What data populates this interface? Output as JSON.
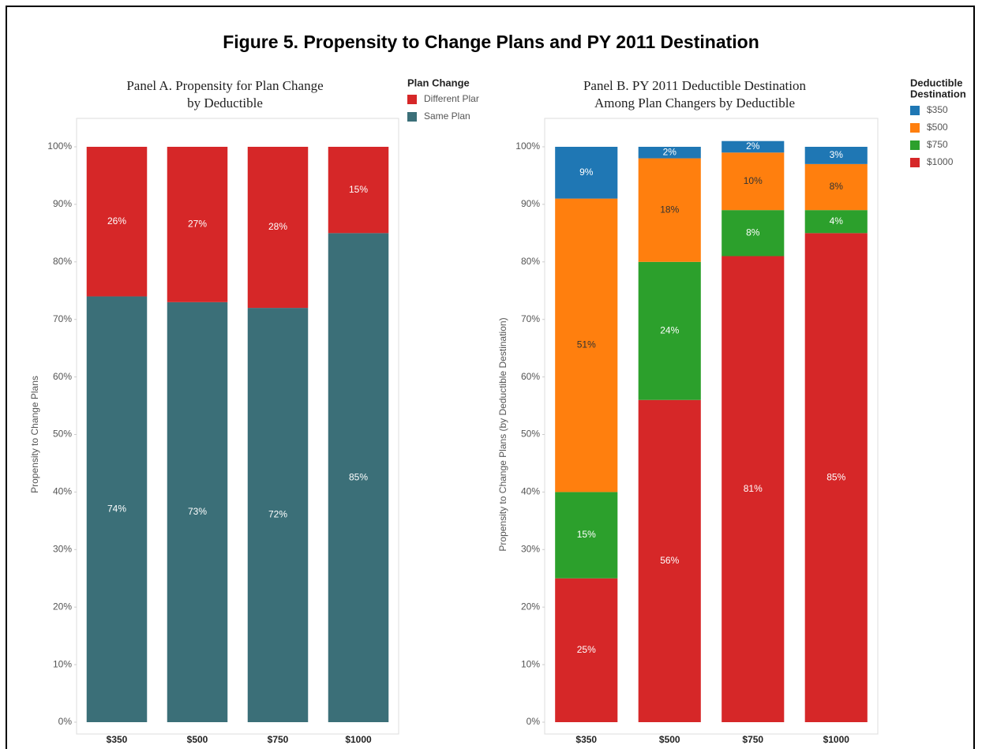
{
  "title": "Figure 5.  Propensity to Change Plans and PY 2011 Destination",
  "chart_data": [
    {
      "type": "stacked_bar",
      "title": [
        "Panel A. Propensity for Plan Change",
        "by Deductible"
      ],
      "ylabel": "Propensity to Change Plans",
      "legend_title": [
        "Plan Change"
      ],
      "categories": [
        "$350",
        "$500",
        "$750",
        "$1000"
      ],
      "series": [
        {
          "name": "Same Plan",
          "color": "#3b6f78",
          "values": [
            74,
            73,
            72,
            85
          ],
          "value_labels": [
            "74%",
            "73%",
            "72%",
            "85%"
          ]
        },
        {
          "name": "Different Plar",
          "color": "#d62728",
          "values": [
            26,
            27,
            28,
            15
          ],
          "value_labels": [
            "26%",
            "27%",
            "28%",
            "15%"
          ]
        }
      ],
      "ylim": [
        0,
        100
      ],
      "yticks": [
        {
          "value": 0,
          "label": "0%"
        },
        {
          "value": 10,
          "label": "10%"
        },
        {
          "value": 20,
          "label": "20%"
        },
        {
          "value": 30,
          "label": "30%"
        },
        {
          "value": 40,
          "label": "40%"
        },
        {
          "value": 50,
          "label": "50%"
        },
        {
          "value": 60,
          "label": "60%"
        },
        {
          "value": 70,
          "label": "70%"
        },
        {
          "value": 80,
          "label": "80%"
        },
        {
          "value": 90,
          "label": "90%"
        },
        {
          "value": 100,
          "label": "100%"
        }
      ]
    },
    {
      "type": "stacked_bar",
      "title": [
        "Panel B. PY 2011 Deductible Destination",
        "Among Plan Changers by Deductible"
      ],
      "ylabel": "Propensity to Change Plans (by Deductible Destination)",
      "legend_title": [
        "Deductible",
        "Destination"
      ],
      "categories": [
        "$350",
        "$500",
        "$750",
        "$1000"
      ],
      "series": [
        {
          "name": "$1000",
          "color": "#d62728",
          "values": [
            25,
            56,
            81,
            85
          ],
          "value_labels": [
            "25%",
            "56%",
            "81%",
            "85%"
          ]
        },
        {
          "name": "$750",
          "color": "#2ca02c",
          "values": [
            15,
            24,
            8,
            4
          ],
          "value_labels": [
            "15%",
            "24%",
            "8%",
            "4%"
          ]
        },
        {
          "name": "$500",
          "color": "#ff7f0e",
          "values": [
            51,
            18,
            10,
            8
          ],
          "value_labels": [
            "51%",
            "18%",
            "10%",
            "8%"
          ]
        },
        {
          "name": "$350",
          "color": "#1f77b4",
          "values": [
            9,
            2,
            2,
            3
          ],
          "value_labels": [
            "9%",
            "2%",
            "2%",
            "3%"
          ]
        }
      ],
      "ylim": [
        0,
        100
      ],
      "yticks": [
        {
          "value": 0,
          "label": "0%"
        },
        {
          "value": 10,
          "label": "10%"
        },
        {
          "value": 20,
          "label": "20%"
        },
        {
          "value": 30,
          "label": "30%"
        },
        {
          "value": 40,
          "label": "40%"
        },
        {
          "value": 50,
          "label": "50%"
        },
        {
          "value": 60,
          "label": "60%"
        },
        {
          "value": 70,
          "label": "70%"
        },
        {
          "value": 80,
          "label": "80%"
        },
        {
          "value": 90,
          "label": "90%"
        },
        {
          "value": 100,
          "label": "100%"
        }
      ]
    }
  ]
}
